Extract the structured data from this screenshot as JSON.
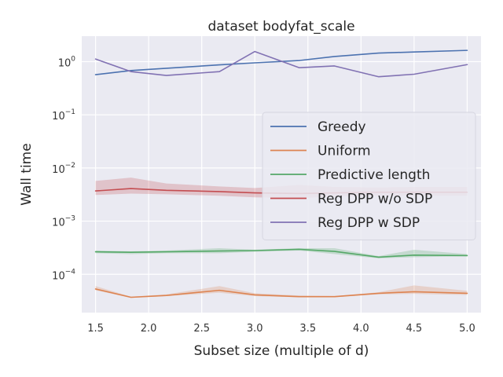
{
  "chart_data": {
    "type": "line",
    "title": "dataset bodyfat_scale",
    "xlabel": "Subset size (multiple of d)",
    "ylabel": "Wall time",
    "yscale": "log",
    "xlim": [
      1.37,
      5.13
    ],
    "ylim_log10": [
      -4.72,
      0.48
    ],
    "x": [
      1.5,
      1.8333,
      2.1667,
      2.6667,
      3.0,
      3.4167,
      3.75,
      4.1667,
      4.5,
      5.0
    ],
    "x_ticks": [
      1.5,
      2.0,
      2.5,
      3.0,
      3.5,
      4.0,
      4.5,
      5.0
    ],
    "x_tick_labels": [
      "1.5",
      "2.0",
      "2.5",
      "3.0",
      "3.5",
      "4.0",
      "4.5",
      "5.0"
    ],
    "y_ticks_log10": [
      -4,
      -3,
      -2,
      -1,
      0
    ],
    "y_tick_bases": [
      "10",
      "10",
      "10",
      "10",
      "10"
    ],
    "y_tick_exponents": [
      "−4",
      "−3",
      "−2",
      "−1",
      "0"
    ],
    "grid": true,
    "legend_position": "center-right",
    "series": [
      {
        "name": "Greedy",
        "color": "#4c72b0",
        "values": [
          0.57,
          0.68,
          0.75,
          0.87,
          0.95,
          1.05,
          1.25,
          1.45,
          1.52,
          1.63
        ]
      },
      {
        "name": "Uniform",
        "color": "#dd8452",
        "values": [
          5.3e-05,
          3.7e-05,
          4e-05,
          5e-05,
          4.1e-05,
          3.8e-05,
          3.8e-05,
          4.4e-05,
          4.7e-05,
          4.4e-05
        ],
        "lower": [
          5e-05,
          3.6e-05,
          3.9e-05,
          4.5e-05,
          3.9e-05,
          3.7e-05,
          3.7e-05,
          4.2e-05,
          4.3e-05,
          4.1e-05
        ],
        "upper": [
          6e-05,
          3.8e-05,
          4.2e-05,
          6e-05,
          4.4e-05,
          4e-05,
          3.9e-05,
          4.6e-05,
          6.2e-05,
          4.9e-05
        ]
      },
      {
        "name": "Predictive length",
        "color": "#55a868",
        "values": [
          0.000265,
          0.00026,
          0.000265,
          0.000275,
          0.00028,
          0.000295,
          0.00027,
          0.00021,
          0.00023,
          0.000225
        ],
        "lower": [
          0.00025,
          0.00024,
          0.00025,
          0.00025,
          0.000265,
          0.00028,
          0.00024,
          0.0002,
          0.00021,
          0.00022
        ],
        "upper": [
          0.00028,
          0.00027,
          0.00028,
          0.00031,
          0.00029,
          0.00031,
          0.00031,
          0.00022,
          0.00029,
          0.00024
        ]
      },
      {
        "name": "Reg DPP w/o SDP",
        "color": "#c44e52",
        "values": [
          0.0037,
          0.0041,
          0.0038,
          0.0036,
          0.0034,
          0.0033,
          0.0034,
          0.0035,
          0.0035,
          0.0035
        ],
        "lower": [
          0.0031,
          0.0033,
          0.0032,
          0.003,
          0.0028,
          0.0027,
          0.0029,
          0.003,
          0.003,
          0.003
        ],
        "upper": [
          0.0057,
          0.0066,
          0.0051,
          0.0045,
          0.0042,
          0.0048,
          0.0044,
          0.0043,
          0.0044,
          0.0044
        ]
      },
      {
        "name": "Reg DPP w SDP",
        "color": "#8172b3",
        "values": [
          1.12,
          0.65,
          0.55,
          0.65,
          1.55,
          0.77,
          0.83,
          0.52,
          0.58,
          0.88
        ]
      }
    ]
  }
}
